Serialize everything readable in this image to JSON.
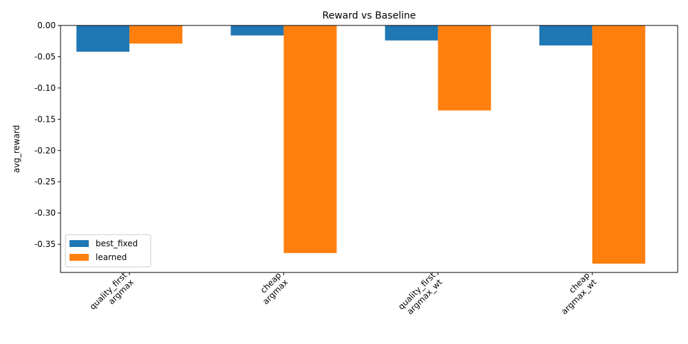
{
  "chart_data": {
    "type": "bar",
    "title": "Reward vs Baseline",
    "xlabel": "",
    "ylabel": "avg_reward",
    "categories": [
      [
        "quality_first",
        "argmax"
      ],
      [
        "cheap",
        "argmax"
      ],
      [
        "quality_first",
        "argmax_wt"
      ],
      [
        "cheap",
        "argmax_wt"
      ]
    ],
    "series": [
      {
        "name": "best_fixed",
        "color": "#1f77b4",
        "values": [
          -0.042,
          -0.016,
          -0.024,
          -0.032
        ]
      },
      {
        "name": "learned",
        "color": "#ff7f0e",
        "values": [
          -0.029,
          -0.364,
          -0.136,
          -0.381
        ]
      }
    ],
    "ylim": [
      -0.395,
      0.0
    ],
    "yticks": [
      "0.00",
      "-0.05",
      "-0.10",
      "-0.15",
      "-0.20",
      "-0.25",
      "-0.30",
      "-0.35"
    ],
    "legend_position": "lower-left",
    "grid": false
  }
}
